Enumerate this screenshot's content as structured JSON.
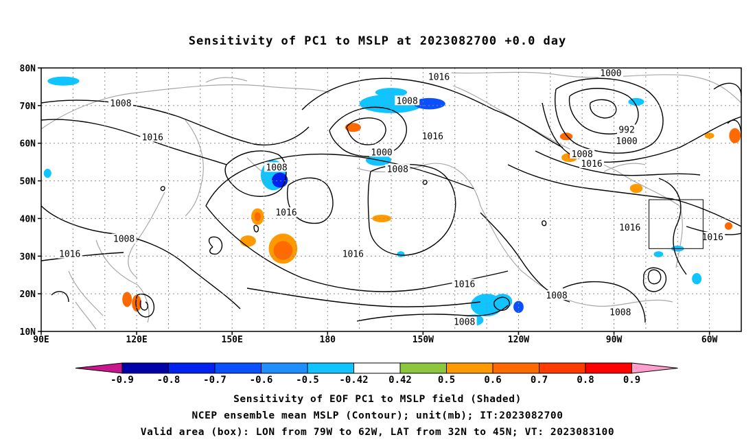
{
  "title": "Sensitivity of PC1 to MSLP at 2023082700 +0.0 day",
  "captions": [
    "Sensitivity of EOF PC1 to MSLP field (Shaded)",
    "NCEP ensemble mean MSLP (Contour); unit(mb); IT:2023082700",
    "Valid area (box): LON from 79W to 62W, LAT from 32N to 45N; VT: 2023083100"
  ],
  "map": {
    "lon_range": [
      90,
      310
    ],
    "lat_range": [
      10,
      80
    ],
    "lat_ticks": [
      {
        "lat": 80,
        "label": "80N"
      },
      {
        "lat": 70,
        "label": "70N"
      },
      {
        "lat": 60,
        "label": "60N"
      },
      {
        "lat": 50,
        "label": "50N"
      },
      {
        "lat": 40,
        "label": "40N"
      },
      {
        "lat": 30,
        "label": "30N"
      },
      {
        "lat": 20,
        "label": "20N"
      },
      {
        "lat": 10,
        "label": "10N"
      }
    ],
    "lon_ticks": [
      {
        "lon": 90,
        "label": "90E"
      },
      {
        "lon": 120,
        "label": "120E"
      },
      {
        "lon": 150,
        "label": "150E"
      },
      {
        "lon": 180,
        "label": "180"
      },
      {
        "lon": 210,
        "label": "150W"
      },
      {
        "lon": 240,
        "label": "120W"
      },
      {
        "lon": 270,
        "label": "90W"
      },
      {
        "lon": 300,
        "label": "60W"
      }
    ],
    "valid_box": {
      "lon": [
        281,
        298
      ],
      "lat": [
        32,
        45
      ]
    },
    "contour_labels": [
      {
        "text": "1016",
        "lon": 215,
        "lat": 77.5
      },
      {
        "text": "1000",
        "lon": 269,
        "lat": 78.5
      },
      {
        "text": "1008",
        "lon": 115,
        "lat": 70.5
      },
      {
        "text": "1008",
        "lon": 205,
        "lat": 71.2
      },
      {
        "text": "992",
        "lon": 274,
        "lat": 63.5
      },
      {
        "text": "1016",
        "lon": 125,
        "lat": 61.5
      },
      {
        "text": "1016",
        "lon": 213,
        "lat": 61.8
      },
      {
        "text": "1000",
        "lon": 274,
        "lat": 60.5
      },
      {
        "text": "1000",
        "lon": 197,
        "lat": 57.5
      },
      {
        "text": "1008",
        "lon": 260,
        "lat": 57
      },
      {
        "text": "1016",
        "lon": 263,
        "lat": 54.5
      },
      {
        "text": "1008",
        "lon": 164,
        "lat": 53.5
      },
      {
        "text": "1008",
        "lon": 202,
        "lat": 53
      },
      {
        "text": "1016",
        "lon": 167,
        "lat": 41.5
      },
      {
        "text": "1016",
        "lon": 275,
        "lat": 37.5
      },
      {
        "text": "1016",
        "lon": 301,
        "lat": 35
      },
      {
        "text": "1008",
        "lon": 116,
        "lat": 34.5
      },
      {
        "text": "1016",
        "lon": 99,
        "lat": 30.5
      },
      {
        "text": "1016",
        "lon": 188,
        "lat": 30.5
      },
      {
        "text": "1016",
        "lon": 223,
        "lat": 22.5
      },
      {
        "text": "1008",
        "lon": 252,
        "lat": 19.5
      },
      {
        "text": "1008",
        "lon": 272,
        "lat": 15
      },
      {
        "text": "1008",
        "lon": 223,
        "lat": 12.5
      }
    ],
    "shading": [
      {
        "lon": 97,
        "lat": 76.5,
        "rx": 5,
        "ry": 1.2,
        "level": -0.5
      },
      {
        "lon": 200,
        "lat": 70.5,
        "rx": 10,
        "ry": 2.5,
        "level": -0.5
      },
      {
        "lon": 212,
        "lat": 70.5,
        "rx": 5,
        "ry": 1.5,
        "level": -0.7
      },
      {
        "lon": 200,
        "lat": 73.5,
        "rx": 5,
        "ry": 1.2,
        "level": -0.5
      },
      {
        "lon": 196,
        "lat": 55.5,
        "rx": 4,
        "ry": 1.5,
        "level": -0.5
      },
      {
        "lon": 188,
        "lat": 64.2,
        "rx": 2.5,
        "ry": 1.2,
        "level": 0.6
      },
      {
        "lon": 163,
        "lat": 51.5,
        "rx": 4,
        "ry": 4,
        "level": -0.5
      },
      {
        "lon": 165,
        "lat": 50.2,
        "rx": 2.5,
        "ry": 2,
        "level": -0.8
      },
      {
        "lon": 166,
        "lat": 32,
        "rx": 4.5,
        "ry": 4,
        "level": 0.5
      },
      {
        "lon": 166,
        "lat": 31.5,
        "rx": 3,
        "ry": 2.5,
        "level": 0.6
      },
      {
        "lon": 158,
        "lat": 40.5,
        "rx": 2,
        "ry": 2.2,
        "level": 0.5
      },
      {
        "lon": 158,
        "lat": 40.5,
        "rx": 1,
        "ry": 1.2,
        "level": 0.6
      },
      {
        "lon": 155,
        "lat": 34,
        "rx": 2.5,
        "ry": 1.5,
        "level": 0.5
      },
      {
        "lon": 197,
        "lat": 40,
        "rx": 3,
        "ry": 1,
        "level": 0.5
      },
      {
        "lon": 230,
        "lat": 17,
        "rx": 5,
        "ry": 3,
        "level": -0.5
      },
      {
        "lon": 235,
        "lat": 18,
        "rx": 3,
        "ry": 2,
        "level": -0.5
      },
      {
        "lon": 240,
        "lat": 16.5,
        "rx": 1.6,
        "ry": 1.6,
        "level": -0.7
      },
      {
        "lon": 226,
        "lat": 13,
        "rx": 3,
        "ry": 1.5,
        "level": -0.5
      },
      {
        "lon": 255,
        "lat": 61.8,
        "rx": 2,
        "ry": 1,
        "level": 0.6
      },
      {
        "lon": 256,
        "lat": 56.2,
        "rx": 2.5,
        "ry": 1.2,
        "level": 0.5
      },
      {
        "lon": 257,
        "lat": 56.5,
        "rx": 1.5,
        "ry": 0.8,
        "level": 0.6
      },
      {
        "lon": 277,
        "lat": 48,
        "rx": 2,
        "ry": 1.2,
        "level": 0.5
      },
      {
        "lon": 277,
        "lat": 71,
        "rx": 2.5,
        "ry": 1,
        "level": -0.5
      },
      {
        "lon": 308,
        "lat": 62,
        "rx": 1.8,
        "ry": 2,
        "level": 0.6
      },
      {
        "lon": 117,
        "lat": 18.5,
        "rx": 1.5,
        "ry": 2,
        "level": 0.6
      },
      {
        "lon": 120,
        "lat": 17.5,
        "rx": 1.5,
        "ry": 2.2,
        "level": 0.6
      },
      {
        "lon": 300,
        "lat": 62,
        "rx": 1.5,
        "ry": 0.8,
        "level": 0.5
      },
      {
        "lon": 92,
        "lat": 52,
        "rx": 1.2,
        "ry": 1.2,
        "level": -0.5
      },
      {
        "lon": 306,
        "lat": 38,
        "rx": 1.2,
        "ry": 1,
        "level": 0.6
      },
      {
        "lon": 296,
        "lat": 24,
        "rx": 1.5,
        "ry": 1.5,
        "level": -0.5
      },
      {
        "lon": 203,
        "lat": 30.5,
        "rx": 1.2,
        "ry": 0.8,
        "level": -0.5
      },
      {
        "lon": 284,
        "lat": 30.5,
        "rx": 1.5,
        "ry": 0.8,
        "level": -0.5
      },
      {
        "lon": 290,
        "lat": 32,
        "rx": 2,
        "ry": 0.8,
        "level": -0.5
      }
    ]
  },
  "colorbar": {
    "labels": [
      "-0.9",
      "-0.8",
      "-0.7",
      "-0.6",
      "-0.5",
      "-0.42",
      "0.42",
      "0.5",
      "0.6",
      "0.7",
      "0.8",
      "0.9"
    ],
    "colors": [
      "#0000aa",
      "#0022ee",
      "#0a50ff",
      "#1f8fff",
      "#10c4ff",
      "#ffffff",
      "#8cc63f",
      "#ff9900",
      "#ff6a00",
      "#ff3a00",
      "#ff0000"
    ],
    "low_end_color": "#c8168c",
    "high_end_color": "#ffa0cc"
  }
}
